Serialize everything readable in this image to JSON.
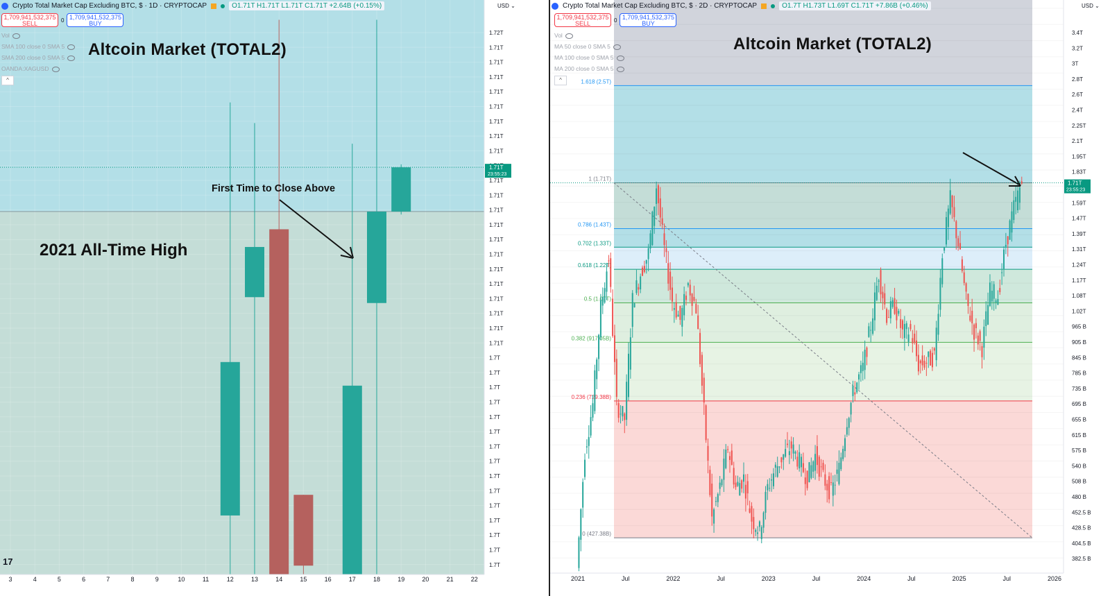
{
  "left": {
    "header": {
      "title": "Crypto Total Market Cap Excluding BTC, $ · 1D · CRYPTOCAP",
      "ohlc": "O1.71T H1.71T L1.71T C1.71T +2.64B (+0.15%)"
    },
    "trade": {
      "sell_price": "1,709,941,532,375",
      "sell_label": "SELL",
      "spread": "0",
      "buy_price": "1,709,941,532,375",
      "buy_label": "BUY"
    },
    "indicators": [
      "Vol",
      "SMA 100 close 0 SMA 5",
      "SMA 200 close 0 SMA 5",
      "OANDA:XAGUSD"
    ],
    "collapse_label": "^",
    "chart_title": "Altcoin Market (TOTAL2)",
    "annotation": "First Time to Close Above",
    "ath_label": "2021 All-Time High",
    "currency": "USD",
    "logo": "17"
  },
  "right": {
    "header": {
      "title": "Crypto Total Market Cap Excluding BTC, $ · 2D · CRYPTOCAP",
      "ohlc": "O1.7T H1.73T L1.69T C1.71T +7.86B (+0.46%)"
    },
    "trade": {
      "sell_price": "1,709,941,532,375",
      "sell_label": "SELL",
      "spread": "0",
      "buy_price": "1,709,941,532,375",
      "buy_label": "BUY"
    },
    "indicators": [
      "Vol",
      "MA 50 close 0 SMA 5",
      "MA 100 close 0 SMA 5",
      "MA 200 close 0 SMA 5"
    ],
    "collapse_label": "^",
    "chart_title": "Altcoin Market (TOTAL2)",
    "currency": "USD"
  },
  "chart_data": [
    {
      "type": "candlestick",
      "title": "Altcoin Market (TOTAL2)",
      "interval": "1D",
      "x_tick_labels": [
        "3",
        "4",
        "5",
        "6",
        "7",
        "8",
        "9",
        "10",
        "11",
        "12",
        "13",
        "14",
        "15",
        "16",
        "17",
        "18",
        "19",
        "20",
        "21",
        "22"
      ],
      "y_tick_labels": [
        "1.72T",
        "1.71T",
        "1.71T",
        "1.71T",
        "1.71T",
        "1.71T",
        "1.71T",
        "1.71T",
        "1.71T",
        "1.71T",
        "1.71T",
        "1.71T",
        "1.71T",
        "1.71T",
        "1.71T",
        "1.71T",
        "1.71T",
        "1.71T",
        "1.71T",
        "1.71T",
        "1.71T",
        "1.71T",
        "1.7T",
        "1.7T",
        "1.7T",
        "1.7T",
        "1.7T",
        "1.7T",
        "1.7T",
        "1.7T",
        "1.7T",
        "1.7T",
        "1.7T",
        "1.7T",
        "1.7T",
        "1.7T",
        "1.7T",
        "1.7T"
      ],
      "ylim": [
        1.6955,
        1.7145
      ],
      "candles": [
        {
          "day": "12",
          "open": 1.6975,
          "high": 1.7115,
          "low": 1.6955,
          "close": 1.7027,
          "dir": "up"
        },
        {
          "day": "13",
          "open": 1.7049,
          "high": 1.7108,
          "low": 1.6955,
          "close": 1.7066,
          "dir": "up"
        },
        {
          "day": "14",
          "open": 1.7072,
          "high": 1.7143,
          "low": 1.6955,
          "close": 1.6955,
          "dir": "down"
        },
        {
          "day": "15",
          "open": 1.6982,
          "high": 1.6982,
          "low": 1.6955,
          "close": 1.6958,
          "dir": "down"
        },
        {
          "day": "17",
          "open": 1.6955,
          "high": 1.7101,
          "low": 1.6955,
          "close": 1.7019,
          "dir": "up"
        },
        {
          "day": "18",
          "open": 1.7047,
          "high": 1.7143,
          "low": 1.6955,
          "close": 1.7078,
          "dir": "up"
        },
        {
          "day": "19",
          "open": 1.7078,
          "high": 1.7094,
          "low": 1.7077,
          "close": 1.7093,
          "dir": "up"
        }
      ],
      "reference_line": {
        "label": "2021 All-Time High",
        "value": 1.7078
      },
      "last_price": {
        "label": "1.71T",
        "countdown": "23:55:23"
      }
    },
    {
      "type": "candlestick",
      "title": "Altcoin Market (TOTAL2)",
      "interval": "2D",
      "x_tick_labels": [
        "2021",
        "Jul",
        "2022",
        "Jul",
        "2023",
        "Jul",
        "2024",
        "Jul",
        "2025",
        "Jul",
        "2026"
      ],
      "y_tick_labels": [
        "3.4T",
        "3.2T",
        "3T",
        "2.8T",
        "2.6T",
        "2.4T",
        "2.25T",
        "2.1T",
        "1.95T",
        "1.83T",
        "1.71T",
        "1.59T",
        "1.47T",
        "1.39T",
        "1.31T",
        "1.24T",
        "1.17T",
        "1.08T",
        "1.02T",
        "965 B",
        "905 B",
        "845 B",
        "785 B",
        "735 B",
        "695 B",
        "655 B",
        "615 B",
        "575 B",
        "540 B",
        "508 B",
        "480 B",
        "452.5 B",
        "428.5 B",
        "404.5 B",
        "382.5 B"
      ],
      "ylim": [
        382.5,
        3400
      ],
      "y_scale": "log",
      "fib_levels": [
        {
          "label": "1.618 (2.5T)",
          "value": 2500,
          "color": "#2196f3"
        },
        {
          "label": "1 (1.71T)",
          "value": 1710,
          "color": "#787b86"
        },
        {
          "label": "0.786 (1.43T)",
          "value": 1430,
          "color": "#2196f3"
        },
        {
          "label": "0.702 (1.33T)",
          "value": 1330,
          "color": "#089981"
        },
        {
          "label": "0.618 (1.22T)",
          "value": 1220,
          "color": "#089981"
        },
        {
          "label": "0.5 (1.07T)",
          "value": 1070,
          "color": "#4caf50"
        },
        {
          "label": "0.382 (917.05B)",
          "value": 917.05,
          "color": "#4caf50"
        },
        {
          "label": "0.236 (729.38B)",
          "value": 729.38,
          "color": "#f23645"
        },
        {
          "label": "0 (427.38B)",
          "value": 427.38,
          "color": "#787b86"
        }
      ],
      "price_path": [
        {
          "t": "2021-01",
          "v": 380
        },
        {
          "t": "2021-02",
          "v": 600
        },
        {
          "t": "2021-03",
          "v": 720
        },
        {
          "t": "2021-04",
          "v": 1050
        },
        {
          "t": "2021-05",
          "v": 1280
        },
        {
          "t": "2021-06",
          "v": 720
        },
        {
          "t": "2021-07",
          "v": 680
        },
        {
          "t": "2021-08",
          "v": 1080
        },
        {
          "t": "2021-09",
          "v": 1200
        },
        {
          "t": "2021-10",
          "v": 1300
        },
        {
          "t": "2021-11",
          "v": 1690
        },
        {
          "t": "2021-12",
          "v": 1320
        },
        {
          "t": "2022-01",
          "v": 1080
        },
        {
          "t": "2022-02",
          "v": 1000
        },
        {
          "t": "2022-03",
          "v": 1150
        },
        {
          "t": "2022-04",
          "v": 1050
        },
        {
          "t": "2022-05",
          "v": 700
        },
        {
          "t": "2022-06",
          "v": 460
        },
        {
          "t": "2022-07",
          "v": 520
        },
        {
          "t": "2022-08",
          "v": 610
        },
        {
          "t": "2022-09",
          "v": 520
        },
        {
          "t": "2022-10",
          "v": 540
        },
        {
          "t": "2022-11",
          "v": 460
        },
        {
          "t": "2022-12",
          "v": 440
        },
        {
          "t": "2023-01",
          "v": 520
        },
        {
          "t": "2023-02",
          "v": 560
        },
        {
          "t": "2023-03",
          "v": 590
        },
        {
          "t": "2023-04",
          "v": 610
        },
        {
          "t": "2023-05",
          "v": 575
        },
        {
          "t": "2023-06",
          "v": 540
        },
        {
          "t": "2023-07",
          "v": 590
        },
        {
          "t": "2023-08",
          "v": 540
        },
        {
          "t": "2023-09",
          "v": 510
        },
        {
          "t": "2023-10",
          "v": 560
        },
        {
          "t": "2023-11",
          "v": 680
        },
        {
          "t": "2023-12",
          "v": 770
        },
        {
          "t": "2024-01",
          "v": 830
        },
        {
          "t": "2024-02",
          "v": 980
        },
        {
          "t": "2024-03",
          "v": 1200
        },
        {
          "t": "2024-04",
          "v": 1020
        },
        {
          "t": "2024-05",
          "v": 1060
        },
        {
          "t": "2024-06",
          "v": 950
        },
        {
          "t": "2024-07",
          "v": 960
        },
        {
          "t": "2024-08",
          "v": 840
        },
        {
          "t": "2024-09",
          "v": 850
        },
        {
          "t": "2024-10",
          "v": 870
        },
        {
          "t": "2024-11",
          "v": 1300
        },
        {
          "t": "2024-12",
          "v": 1600
        },
        {
          "t": "2025-01",
          "v": 1350
        },
        {
          "t": "2025-02",
          "v": 1080
        },
        {
          "t": "2025-03",
          "v": 960
        },
        {
          "t": "2025-04",
          "v": 900
        },
        {
          "t": "2025-05",
          "v": 1120
        },
        {
          "t": "2025-06",
          "v": 1100
        },
        {
          "t": "2025-07",
          "v": 1350
        },
        {
          "t": "2025-08",
          "v": 1550
        },
        {
          "t": "2025-09",
          "v": 1710
        }
      ],
      "last_price": {
        "label": "1.71T",
        "countdown": "23:55:23"
      }
    }
  ]
}
